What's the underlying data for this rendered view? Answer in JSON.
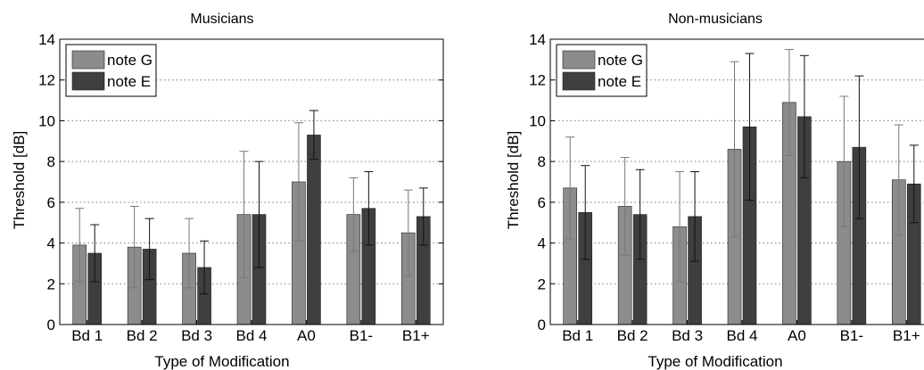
{
  "colors": {
    "note_g": "#8c8c8c",
    "note_e": "#3f3f3f",
    "axis": "#000000",
    "grid": "#7a7a7a"
  },
  "chart_data": [
    {
      "type": "bar",
      "title": "Musicians",
      "xlabel": "Type of Modification",
      "ylabel": "Threshold [dB]",
      "ylim": [
        0,
        14
      ],
      "yticks": [
        0,
        2,
        4,
        6,
        8,
        10,
        12,
        14
      ],
      "grid": "horizontal dotted",
      "legend_position": "top-left",
      "categories": [
        "Bd 1",
        "Bd 2",
        "Bd 3",
        "Bd 4",
        "A0",
        "B1-",
        "B1+"
      ],
      "series": [
        {
          "name": "note G",
          "values": [
            3.9,
            3.8,
            3.5,
            5.4,
            7.0,
            5.4,
            4.5
          ],
          "error": [
            1.8,
            2.0,
            1.7,
            3.1,
            2.9,
            1.8,
            2.1
          ]
        },
        {
          "name": "note E",
          "values": [
            3.5,
            3.7,
            2.8,
            5.4,
            9.3,
            5.7,
            5.3
          ],
          "error": [
            1.4,
            1.5,
            1.3,
            2.6,
            1.2,
            1.8,
            1.4
          ]
        }
      ]
    },
    {
      "type": "bar",
      "title": "Non-musicians",
      "xlabel": "Type of Modification",
      "ylabel": "Threshold [dB]",
      "ylim": [
        0,
        14
      ],
      "yticks": [
        0,
        2,
        4,
        6,
        8,
        10,
        12,
        14
      ],
      "grid": "horizontal dotted",
      "legend_position": "top-left",
      "categories": [
        "Bd 1",
        "Bd 2",
        "Bd 3",
        "Bd 4",
        "A0",
        "B1-",
        "B1+"
      ],
      "series": [
        {
          "name": "note G",
          "values": [
            6.7,
            5.8,
            4.8,
            8.6,
            10.9,
            8.0,
            7.1
          ],
          "error": [
            2.5,
            2.4,
            2.7,
            4.3,
            2.6,
            3.2,
            2.7
          ]
        },
        {
          "name": "note E",
          "values": [
            5.5,
            5.4,
            5.3,
            9.7,
            10.2,
            8.7,
            6.9
          ],
          "error": [
            2.3,
            2.2,
            2.2,
            3.6,
            3.0,
            3.5,
            1.9
          ]
        }
      ]
    }
  ]
}
